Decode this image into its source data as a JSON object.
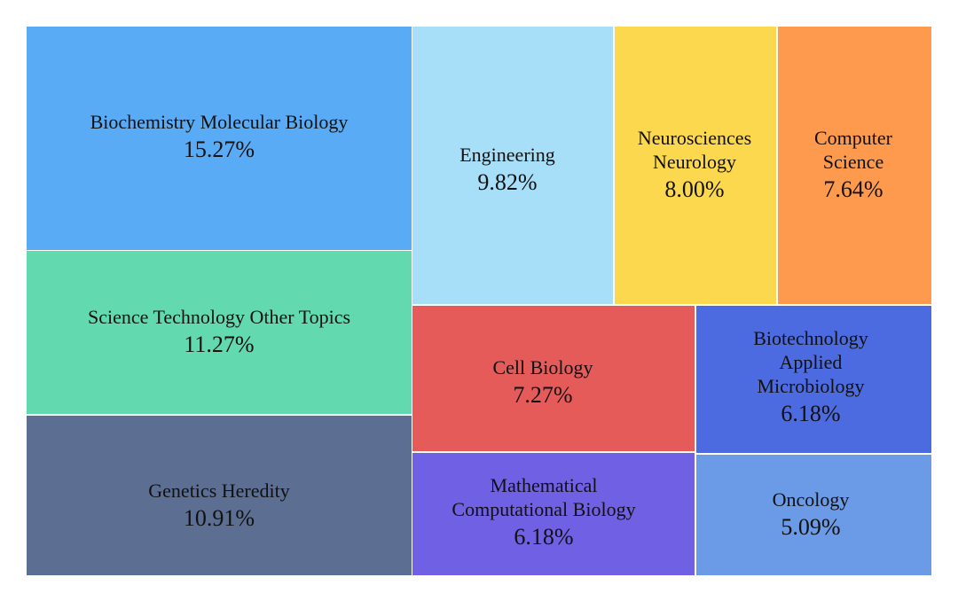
{
  "chart_data": {
    "type": "treemap",
    "title": "",
    "items": [
      {
        "lines": [
          "Biochemistry Molecular Biology"
        ],
        "value_label": "15.27%",
        "value": 15.27,
        "color": "#58abf4"
      },
      {
        "lines": [
          "Science Technology Other Topics"
        ],
        "value_label": "11.27%",
        "value": 11.27,
        "color": "#62d9ae"
      },
      {
        "lines": [
          "Genetics Heredity"
        ],
        "value_label": "10.91%",
        "value": 10.91,
        "color": "#5c6e92"
      },
      {
        "lines": [
          "Engineering"
        ],
        "value_label": "9.82%",
        "value": 9.82,
        "color": "#a8dff8"
      },
      {
        "lines": [
          "Neurosciences",
          "Neurology"
        ],
        "value_label": "8.00%",
        "value": 8.0,
        "color": "#fcd84f"
      },
      {
        "lines": [
          "Computer",
          "Science"
        ],
        "value_label": "7.64%",
        "value": 7.64,
        "color": "#fe9a4e"
      },
      {
        "lines": [
          "Cell Biology"
        ],
        "value_label": "7.27%",
        "value": 7.27,
        "color": "#e45b59"
      },
      {
        "lines": [
          "Biotechnology",
          "Applied",
          "Microbiology"
        ],
        "value_label": "6.18%",
        "value": 6.18,
        "color": "#4d6be0"
      },
      {
        "lines": [
          "Mathematical",
          "Computational Biology"
        ],
        "value_label": "6.18%",
        "value": 6.18,
        "color": "#7060e4"
      },
      {
        "lines": [
          "Oncology"
        ],
        "value_label": "5.09%",
        "value": 5.09,
        "color": "#6b9ae6"
      }
    ]
  }
}
